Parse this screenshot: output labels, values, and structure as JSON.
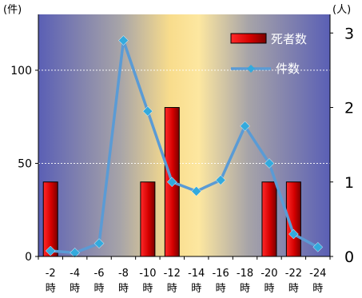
{
  "chart_data": {
    "type": "bar+line",
    "categories": [
      [
        "-2",
        "時"
      ],
      [
        "-4",
        "時"
      ],
      [
        "-6",
        "時"
      ],
      [
        "-8",
        "時"
      ],
      [
        "-10",
        "時"
      ],
      [
        "-12",
        "時"
      ],
      [
        "-14",
        "時"
      ],
      [
        "-16",
        "時"
      ],
      [
        "-18",
        "時"
      ],
      [
        "-20",
        "時"
      ],
      [
        "-22",
        "時"
      ],
      [
        "-24",
        "時"
      ]
    ],
    "left_axis": {
      "unit_label": "(件)",
      "ticks": [
        0,
        50,
        100
      ],
      "range": [
        0,
        130
      ]
    },
    "right_axis": {
      "unit_label": "(人)",
      "ticks": [
        0,
        1,
        2,
        3
      ],
      "range": [
        0,
        3.25
      ]
    },
    "grid": {
      "horizontal": true,
      "values": [
        50,
        100
      ]
    },
    "series": [
      {
        "name": "死者数",
        "type": "bar",
        "axis": "right",
        "values": [
          1,
          0,
          0,
          0,
          1,
          2,
          0,
          0,
          0,
          1,
          1,
          0
        ],
        "color": "#d40000"
      },
      {
        "name": "件数",
        "type": "line",
        "axis": "left",
        "values": [
          3,
          2,
          7,
          116,
          78,
          40,
          35,
          41,
          70,
          50,
          12,
          5
        ],
        "color": "#5a9bd5",
        "marker_color": "#33aadd"
      }
    ],
    "legend": {
      "placement": "top-right"
    },
    "background": {
      "gradient_stops": [
        "#5a5fb5",
        "#a7a4a8",
        "#fde8a0",
        "#f9dd8d",
        "#a7a4a8",
        "#5a5fb5"
      ]
    }
  }
}
